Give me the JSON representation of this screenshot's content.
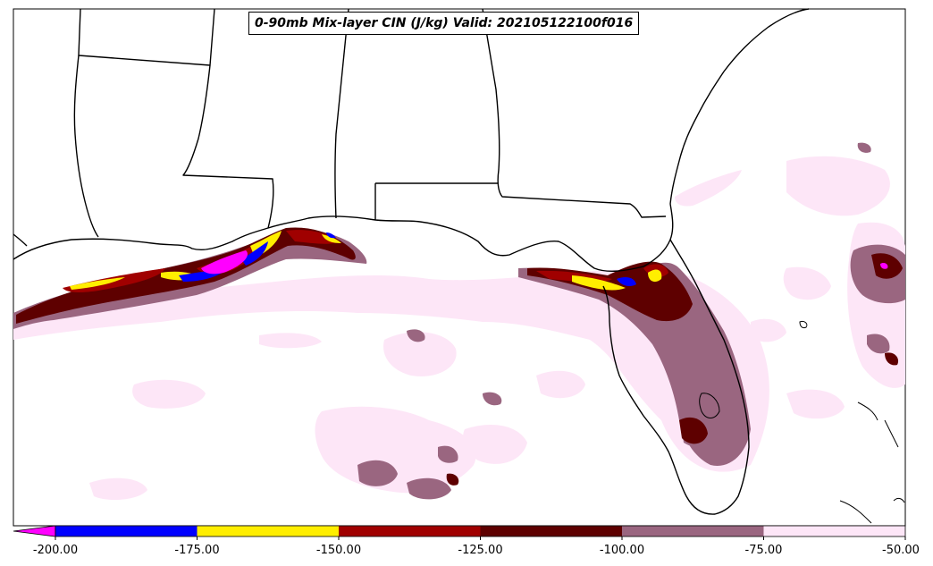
{
  "title": "0-90mb Mix-layer CIN (J/kg) Valid: 202105122100f016",
  "colorbar": {
    "bins": [
      {
        "from": -200,
        "to": -175,
        "color": "#0000ff"
      },
      {
        "from": -175,
        "to": -150,
        "color": "#ffee00"
      },
      {
        "from": -150,
        "to": -125,
        "color": "#a00000"
      },
      {
        "from": -125,
        "to": -100,
        "color": "#5e0000"
      },
      {
        "from": -100,
        "to": -75,
        "color": "#9a6680"
      },
      {
        "from": -75,
        "to": -50,
        "color": "#fde6f7"
      }
    ],
    "under_color": "#ff00ff",
    "ticks": [
      "-200.00",
      "-175.00",
      "-150.00",
      "-125.00",
      "-100.00",
      "-75.00",
      "-50.00"
    ]
  },
  "colors": {
    "magenta": "#ff00ff",
    "blue": "#0000ff",
    "yellow": "#ffee00",
    "red": "#a00000",
    "dark_red": "#5e0000",
    "mauve": "#9a6680",
    "light_pink": "#fde6f7"
  }
}
